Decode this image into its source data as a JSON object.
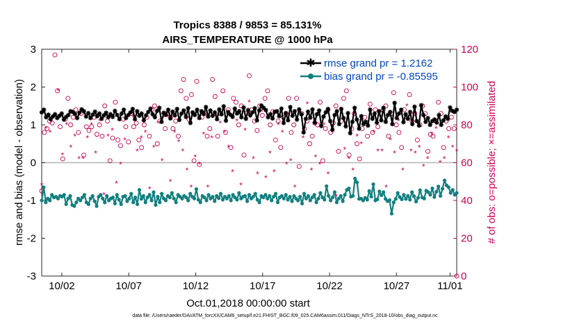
{
  "chart_data": {
    "type": "line",
    "title": "Tropics 8388 / 9853 = 85.131%",
    "subtitle": "AIRS_TEMPERATURE @ 1000 hPa",
    "xlabel": "Oct.01,2018 00:00:00 start",
    "ylabel": "rmse and bias (model - observation)",
    "ylabel_right": "# of obs: o=possible; ×=assimilated",
    "footnote": "data file: /Users/raeder/DAI/ATM_forcXX/CAM6_setup/f.e21.FHIST_BGC.f09_025.CAM6assim.011/Diags_NTrS_2018-10/obs_diag_output.nc",
    "xlim": [
      0.5,
      31.5
    ],
    "ylim": [
      -3,
      3
    ],
    "ylim_right": [
      0,
      120
    ],
    "xticks": [
      {
        "x": 2,
        "label": "10/02"
      },
      {
        "x": 7,
        "label": "10/07"
      },
      {
        "x": 12,
        "label": "10/12"
      },
      {
        "x": 17,
        "label": "10/17"
      },
      {
        "x": 22,
        "label": "10/22"
      },
      {
        "x": 27,
        "label": "10/27"
      },
      {
        "x": 31,
        "label": "11/01"
      }
    ],
    "yticks": [
      {
        "v": -3,
        "label": "-3"
      },
      {
        "v": -2,
        "label": "-2"
      },
      {
        "v": -1,
        "label": "-1"
      },
      {
        "v": 0,
        "label": "0"
      },
      {
        "v": 1,
        "label": "1"
      },
      {
        "v": 2,
        "label": "2"
      },
      {
        "v": 3,
        "label": "3"
      }
    ],
    "yticks_right": [
      {
        "v": 0,
        "label": "0"
      },
      {
        "v": 20,
        "label": "20"
      },
      {
        "v": 40,
        "label": "40"
      },
      {
        "v": 60,
        "label": "60"
      },
      {
        "v": 80,
        "label": "80"
      },
      {
        "v": 100,
        "label": "100"
      },
      {
        "v": 120,
        "label": "120"
      }
    ],
    "series": [
      {
        "name": "rmse grand pr = 1.2162",
        "color": "#000000",
        "marker": "star",
        "values": [
          1.33,
          1.4,
          1.2,
          1.27,
          1.15,
          1.22,
          1.28,
          1.18,
          1.24,
          1.3,
          1.14,
          1.21,
          1.26,
          1.36,
          1.34,
          1.29,
          1.18,
          1.32,
          1.41,
          1.36,
          1.22,
          1.31,
          1.18,
          1.27,
          1.35,
          1.23,
          1.3,
          1.16,
          1.25,
          1.32,
          1.2,
          1.28,
          1.21,
          1.37,
          1.26,
          1.15,
          1.3,
          1.4,
          1.18,
          1.26,
          1.33,
          1.42,
          1.15,
          1.36,
          1.24,
          1.3,
          1.12,
          1.25,
          1.34,
          1.43,
          1.28,
          1.2,
          1.37,
          1.45,
          1.08,
          1.32,
          1.26,
          1.4,
          1.17,
          1.35,
          1.25,
          1.42,
          1.13,
          1.3,
          1.38,
          1.21,
          1.44,
          1.05,
          1.33,
          1.26,
          1.4,
          1.18,
          1.36,
          1.29,
          1.47,
          1.22,
          1.38,
          1.24,
          1.33,
          1.15,
          1.41,
          1.28,
          1.49,
          1.11,
          1.34,
          1.27,
          1.21,
          1.43,
          1.3,
          1.36,
          1.2,
          1.46,
          1.16,
          1.39,
          1.25,
          1.33,
          1.44,
          1.12,
          1.38,
          1.51,
          1.45,
          1.39,
          1.2,
          1.28,
          1.17,
          1.34,
          1.36,
          1.23,
          1.43,
          1.05,
          1.31,
          1.12,
          1.47,
          1.24,
          1.36,
          1.14,
          1.41,
          1.28,
          0.8,
          1.16,
          1.35,
          1.19,
          1.41,
          1.06,
          1.28,
          1.38,
          0.97,
          1.22,
          1.33,
          1.42,
          1.1,
          0.87,
          1.26,
          1.36,
          1.02,
          1.42,
          1.18,
          0.96,
          1.31,
          0.78,
          1.08,
          1.45,
          1.14,
          0.9,
          1.23,
          1.02,
          1.08,
          0.98,
          1.4,
          1.16,
          1.3,
          1.06,
          1.36,
          1.12,
          1.45,
          1.08,
          1.26,
          1.34,
          1.02,
          1.58,
          1.18,
          1.3,
          1.4,
          1.07,
          1.28,
          1.16,
          1.34,
          1.02,
          1.48,
          1.1,
          0.98,
          1.52,
          1.26,
          1.08,
          1.18,
          1.0,
          1.1,
          1.14,
          1.06,
          1.26,
          1.0,
          1.12,
          1.22,
          1.16,
          1.46,
          1.37,
          1.34,
          1.4
        ]
      },
      {
        "name": "bias grand pr = -0.85595",
        "color": "#117f7f",
        "marker": "dot",
        "values": [
          -1.0,
          -0.65,
          -1.05,
          -0.95,
          -1.0,
          -0.85,
          -0.92,
          -0.9,
          -0.95,
          -0.88,
          -0.9,
          -0.85,
          -1.1,
          -0.95,
          -0.88,
          -1.12,
          -1.15,
          -1.05,
          -0.95,
          -1.0,
          -0.92,
          -0.85,
          -1.05,
          -1.1,
          -0.95,
          -0.88,
          -1.02,
          -1.15,
          -0.9,
          -0.85,
          -0.95,
          -1.05,
          -0.88,
          -1.0,
          -0.95,
          -0.92,
          -1.08,
          -0.85,
          -0.98,
          -1.1,
          -0.9,
          -0.88,
          -1.02,
          -0.95,
          -0.82,
          -1.05,
          -0.92,
          -1.1,
          -0.72,
          -0.96,
          -0.88,
          -1.05,
          -0.92,
          -0.85,
          -1.0,
          -0.78,
          -1.12,
          -0.9,
          -1.05,
          -0.82,
          -0.95,
          -1.0,
          -0.88,
          -0.92,
          -0.8,
          -0.95,
          -1.05,
          -0.85,
          -0.9,
          -0.95,
          -0.88,
          -0.92,
          -1.0,
          -0.82,
          -0.9,
          -0.95,
          -0.7,
          -0.98,
          -1.05,
          -0.88,
          -0.92,
          -1.0,
          -0.85,
          -0.95,
          -0.9,
          -1.02,
          -0.88,
          -0.94,
          -0.82,
          -0.98,
          -0.9,
          -0.95,
          -0.88,
          -1.0,
          -0.85,
          -0.92,
          -0.98,
          -0.8,
          -0.95,
          -0.9,
          -0.88,
          -1.02,
          -0.85,
          -0.95,
          -0.9,
          -0.82,
          -0.98,
          -1.05,
          -0.88,
          -0.92,
          -0.85,
          -0.95,
          -0.88,
          -1.0,
          -0.9,
          -0.82,
          -1.05,
          -0.92,
          -0.88,
          -0.95,
          -0.85,
          -0.98,
          -0.9,
          -1.02,
          -0.88,
          -0.95,
          -1.0,
          -0.9,
          -1.08,
          -0.82,
          -0.95,
          -0.88,
          -1.0,
          -0.92,
          -0.85,
          -1.05,
          -0.95,
          -0.8,
          -0.92,
          -0.98,
          -0.62,
          -0.88,
          -1.0,
          -0.92,
          -0.78,
          -1.05,
          -0.95,
          -0.88,
          -1.02,
          -0.85,
          -0.72,
          -0.68,
          -0.9,
          -0.88,
          -0.42,
          -0.52,
          -0.96,
          -0.95,
          -1.0,
          -0.93,
          -0.98,
          -0.75,
          -0.9,
          -0.57,
          -1.0,
          -0.97,
          -0.76,
          -0.86,
          -0.78,
          -0.96,
          -1.02,
          -0.99,
          -1.35,
          -1.05,
          -0.96,
          -0.8,
          -0.91,
          -0.97,
          -0.85,
          -0.96,
          -0.88,
          -0.98,
          -0.78,
          -0.89,
          -1.03,
          -0.93,
          -0.73,
          -0.92,
          -0.95,
          -0.74,
          -0.78,
          -0.85,
          -0.68,
          -0.91,
          -0.77,
          -0.63,
          -0.88,
          -0.69,
          -0.47,
          -0.6,
          -0.65,
          -0.8,
          -0.72,
          -0.85,
          -0.8
        ]
      },
      {
        "name": "obs possible",
        "color": "#cc0052",
        "marker": "circle",
        "values": [
          45,
          76,
          78,
          82,
          81,
          117,
          98,
          79,
          62,
          83,
          94,
          80,
          84,
          88,
          76,
          86,
          64,
          79,
          77,
          79,
          84,
          75,
          80,
          74,
          90,
          82,
          61,
          73,
          92,
          72,
          69,
          83,
          79,
          71,
          86,
          79,
          81,
          72,
          68,
          80,
          84,
          74,
          88,
          90,
          70,
          82,
          85,
          78,
          86,
          84,
          78,
          82,
          74,
          98,
          104,
          94,
          83,
          96,
          61,
          103,
          59,
          84,
          86,
          74,
          78,
          104,
          95,
          74,
          86,
          98,
          76,
          88,
          68,
          94,
          92,
          80,
          90,
          64,
          86,
          106,
          88,
          82,
          77,
          90,
          85,
          94,
          98,
          80,
          87,
          72,
          82,
          68,
          84,
          86,
          94,
          76,
          80,
          94,
          58,
          86,
          78,
          82,
          70,
          74,
          81,
          80,
          92,
          61,
          78,
          88,
          76,
          81,
          90,
          66,
          82,
          94,
          98,
          64,
          78,
          86,
          70,
          62,
          78,
          84,
          74,
          91,
          76,
          88,
          79,
          86,
          88,
          90,
          74,
          86,
          97,
          80,
          76,
          68,
          88,
          84,
          96,
          82,
          86,
          72,
          80,
          90,
          86,
          66,
          75,
          74,
          82,
          92,
          86,
          68,
          82,
          78,
          84,
          78,
          0
        ]
      },
      {
        "name": "obs assimilated",
        "color": "#cc0052",
        "marker": "x",
        "values": [
          48,
          78,
          76,
          84,
          98,
          64,
          80,
          68,
          74,
          62,
          62,
          73,
          80,
          65,
          82,
          43,
          74,
          77,
          49,
          59,
          72,
          40,
          84,
          66,
          73,
          76,
          46,
          68,
          81,
          61,
          86,
          50,
          76,
          71,
          66,
          56,
          47,
          63,
          59,
          75,
          47,
          73,
          85,
          81,
          76,
          68,
          55,
          82,
          48,
          77,
          92,
          62,
          54,
          87,
          52,
          65,
          55,
          80,
          76,
          59,
          61,
          47,
          86,
          73,
          91,
          56,
          63,
          59,
          80,
          54,
          76,
          42,
          88,
          67,
          62,
          56,
          74,
          70,
          81,
          88,
          76,
          66,
          66,
          47,
          72,
          65,
          82,
          56,
          90,
          66,
          65,
          68,
          58,
          62,
          75,
          78,
          60,
          62,
          73,
          68,
          66
        ]
      }
    ]
  }
}
